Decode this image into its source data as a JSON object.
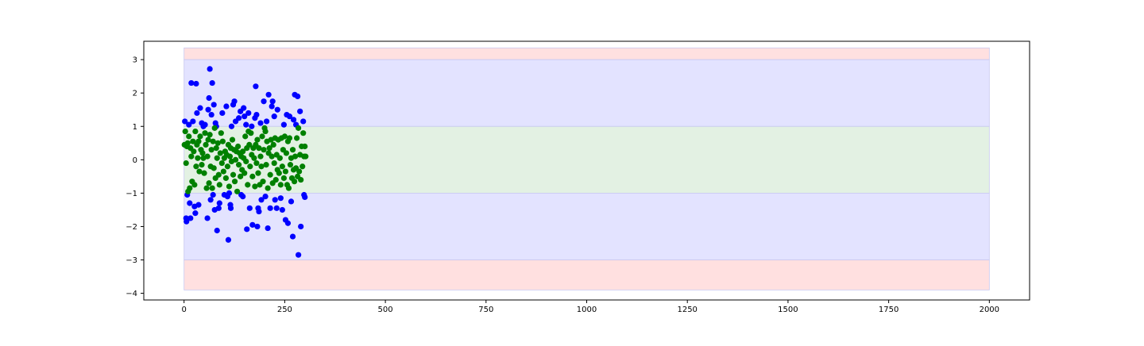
{
  "chart_data": {
    "type": "scatter",
    "title": "",
    "xlabel": "",
    "ylabel": "",
    "xlim": [
      -100,
      2100
    ],
    "ylim": [
      -4.2,
      3.55
    ],
    "x_ticks": [
      0,
      250,
      500,
      750,
      1000,
      1250,
      1500,
      1750,
      2000
    ],
    "x_tick_labels": [
      "0",
      "250",
      "500",
      "750",
      "1000",
      "1250",
      "1500",
      "1750",
      "2000"
    ],
    "y_ticks": [
      3,
      2,
      1,
      0,
      -1,
      -2,
      -3,
      -4
    ],
    "y_tick_labels": [
      "3",
      "2",
      "1",
      "0",
      "−1",
      "−2",
      "−3",
      "−4"
    ],
    "grid": false,
    "legend": "none",
    "bands": [
      {
        "name": "",
        "x_range": [
          0,
          2000
        ],
        "y_range": [
          3.0,
          3.35
        ],
        "color": "#ffe0e0"
      },
      {
        "name": "",
        "x_range": [
          0,
          2000
        ],
        "y_range": [
          1.0,
          3.0
        ],
        "color": "#e3e3ff"
      },
      {
        "name": "",
        "x_range": [
          0,
          2000
        ],
        "y_range": [
          -1.0,
          1.0
        ],
        "color": "#e3f1e3"
      },
      {
        "name": "",
        "x_range": [
          0,
          2000
        ],
        "y_range": [
          -3.0,
          -1.0
        ],
        "color": "#e3e3ff"
      },
      {
        "name": "",
        "x_range": [
          0,
          2000
        ],
        "y_range": [
          -3.9,
          -3.0
        ],
        "color": "#ffe0e0"
      }
    ],
    "band_edge_color": "#c8c8f0",
    "series": [
      {
        "color": "#0000ff",
        "points": [
          [
            2,
            1.15
          ],
          [
            5,
            -1.75
          ],
          [
            6,
            -1.85
          ],
          [
            8,
            -1.05
          ],
          [
            12,
            1.05
          ],
          [
            14,
            -1.3
          ],
          [
            16,
            -1.75
          ],
          [
            18,
            2.3
          ],
          [
            22,
            1.15
          ],
          [
            26,
            -1.4
          ],
          [
            28,
            -1.6
          ],
          [
            30,
            2.28
          ],
          [
            32,
            1.4
          ],
          [
            36,
            -1.35
          ],
          [
            40,
            1.55
          ],
          [
            44,
            1.1
          ],
          [
            48,
            1.0
          ],
          [
            52,
            1.05
          ],
          [
            58,
            -1.75
          ],
          [
            60,
            1.5
          ],
          [
            62,
            1.85
          ],
          [
            64,
            2.72
          ],
          [
            66,
            -1.2
          ],
          [
            68,
            1.35
          ],
          [
            70,
            2.3
          ],
          [
            72,
            -1.05
          ],
          [
            74,
            1.65
          ],
          [
            76,
            -1.5
          ],
          [
            78,
            1.1
          ],
          [
            80,
            1.0
          ],
          [
            82,
            -2.12
          ],
          [
            86,
            -1.45
          ],
          [
            88,
            -1.3
          ],
          [
            95,
            1.4
          ],
          [
            100,
            -1.05
          ],
          [
            105,
            1.6
          ],
          [
            108,
            -1.1
          ],
          [
            110,
            -2.4
          ],
          [
            112,
            -1.0
          ],
          [
            115,
            -1.35
          ],
          [
            116,
            -1.45
          ],
          [
            118,
            1.0
          ],
          [
            122,
            1.65
          ],
          [
            125,
            1.75
          ],
          [
            128,
            1.15
          ],
          [
            136,
            1.25
          ],
          [
            140,
            1.45
          ],
          [
            142,
            -1.05
          ],
          [
            146,
            -1.1
          ],
          [
            148,
            1.55
          ],
          [
            150,
            1.3
          ],
          [
            154,
            1.05
          ],
          [
            156,
            -2.08
          ],
          [
            160,
            1.4
          ],
          [
            163,
            -1.45
          ],
          [
            168,
            1.0
          ],
          [
            170,
            -1.95
          ],
          [
            176,
            1.25
          ],
          [
            178,
            2.2
          ],
          [
            180,
            1.35
          ],
          [
            182,
            -2.0
          ],
          [
            184,
            -1.45
          ],
          [
            186,
            -1.55
          ],
          [
            190,
            1.1
          ],
          [
            192,
            -1.2
          ],
          [
            198,
            1.75
          ],
          [
            202,
            -1.1
          ],
          [
            205,
            1.15
          ],
          [
            208,
            -2.05
          ],
          [
            210,
            1.95
          ],
          [
            214,
            -1.45
          ],
          [
            218,
            1.6
          ],
          [
            220,
            1.75
          ],
          [
            224,
            1.3
          ],
          [
            226,
            -1.2
          ],
          [
            230,
            -1.45
          ],
          [
            232,
            1.5
          ],
          [
            240,
            -1.15
          ],
          [
            244,
            -1.5
          ],
          [
            248,
            1.05
          ],
          [
            252,
            -1.8
          ],
          [
            255,
            1.35
          ],
          [
            258,
            -1.9
          ],
          [
            262,
            1.3
          ],
          [
            266,
            -1.25
          ],
          [
            270,
            -2.3
          ],
          [
            272,
            1.2
          ],
          [
            275,
            1.95
          ],
          [
            278,
            1.05
          ],
          [
            282,
            1.9
          ],
          [
            284,
            -2.85
          ],
          [
            288,
            1.45
          ],
          [
            290,
            -2.0
          ],
          [
            296,
            1.15
          ],
          [
            298,
            -1.05
          ],
          [
            300,
            -1.12
          ]
        ]
      },
      {
        "color": "#008000",
        "points": [
          [
            1,
            0.45
          ],
          [
            3,
            0.85
          ],
          [
            5,
            -0.1
          ],
          [
            7,
            0.4
          ],
          [
            9,
            0.5
          ],
          [
            10,
            -0.95
          ],
          [
            12,
            0.7
          ],
          [
            14,
            -0.85
          ],
          [
            16,
            0.35
          ],
          [
            18,
            0.1
          ],
          [
            20,
            -0.65
          ],
          [
            22,
            0.55
          ],
          [
            24,
            0.25
          ],
          [
            26,
            -0.75
          ],
          [
            28,
            0.85
          ],
          [
            30,
            -0.2
          ],
          [
            32,
            0.45
          ],
          [
            34,
            0.05
          ],
          [
            36,
            0.55
          ],
          [
            38,
            -0.35
          ],
          [
            40,
            0.7
          ],
          [
            42,
            0.3
          ],
          [
            44,
            -0.15
          ],
          [
            46,
            0.2
          ],
          [
            48,
            0.05
          ],
          [
            50,
            -0.4
          ],
          [
            52,
            0.8
          ],
          [
            54,
            0.45
          ],
          [
            56,
            -0.85
          ],
          [
            58,
            0.1
          ],
          [
            60,
            0.6
          ],
          [
            62,
            -0.7
          ],
          [
            64,
            0.75
          ],
          [
            66,
            -0.2
          ],
          [
            68,
            0.3
          ],
          [
            70,
            -0.85
          ],
          [
            72,
            0.55
          ],
          [
            74,
            -0.25
          ],
          [
            76,
            0.95
          ],
          [
            78,
            -0.55
          ],
          [
            80,
            0.35
          ],
          [
            82,
            0.05
          ],
          [
            84,
            0.5
          ],
          [
            86,
            -0.45
          ],
          [
            88,
            -0.75
          ],
          [
            90,
            0.2
          ],
          [
            92,
            0.8
          ],
          [
            94,
            -0.1
          ],
          [
            96,
            0.55
          ],
          [
            98,
            -0.35
          ],
          [
            100,
            0.05
          ],
          [
            102,
            0.25
          ],
          [
            104,
            -0.55
          ],
          [
            106,
            0.15
          ],
          [
            108,
            -0.2
          ],
          [
            110,
            0.45
          ],
          [
            112,
            -0.8
          ],
          [
            114,
            0.1
          ],
          [
            116,
            0.35
          ],
          [
            118,
            -0.05
          ],
          [
            120,
            0.6
          ],
          [
            122,
            -0.45
          ],
          [
            124,
            0.3
          ],
          [
            126,
            -0.65
          ],
          [
            128,
            0.0
          ],
          [
            130,
            0.25
          ],
          [
            132,
            -0.95
          ],
          [
            134,
            0.4
          ],
          [
            136,
            -0.15
          ],
          [
            138,
            0.2
          ],
          [
            140,
            -0.5
          ],
          [
            142,
            0.1
          ],
          [
            144,
            -0.3
          ],
          [
            146,
            0.25
          ],
          [
            148,
            0.05
          ],
          [
            150,
            -0.4
          ],
          [
            152,
            0.7
          ],
          [
            154,
            -0.05
          ],
          [
            156,
            0.35
          ],
          [
            158,
            -0.75
          ],
          [
            160,
            0.85
          ],
          [
            162,
            0.45
          ],
          [
            164,
            -0.2
          ],
          [
            166,
            0.8
          ],
          [
            168,
            0.15
          ],
          [
            170,
            -0.5
          ],
          [
            172,
            0.35
          ],
          [
            174,
            0.05
          ],
          [
            176,
            -0.8
          ],
          [
            178,
            0.45
          ],
          [
            180,
            -0.1
          ],
          [
            182,
            0.6
          ],
          [
            184,
            -0.4
          ],
          [
            186,
            0.35
          ],
          [
            188,
            -0.75
          ],
          [
            190,
            0.1
          ],
          [
            192,
            -0.2
          ],
          [
            194,
            0.7
          ],
          [
            196,
            -0.65
          ],
          [
            198,
            0.3
          ],
          [
            200,
            0.95
          ],
          [
            202,
            0.85
          ],
          [
            204,
            -0.15
          ],
          [
            206,
            0.55
          ],
          [
            208,
            -0.85
          ],
          [
            210,
            0.2
          ],
          [
            212,
            0.35
          ],
          [
            214,
            -0.45
          ],
          [
            216,
            0.6
          ],
          [
            218,
            0.1
          ],
          [
            220,
            -0.7
          ],
          [
            222,
            0.45
          ],
          [
            224,
            -0.1
          ],
          [
            226,
            0.65
          ],
          [
            228,
            -0.6
          ],
          [
            230,
            0.15
          ],
          [
            232,
            -0.3
          ],
          [
            234,
            0.6
          ],
          [
            236,
            -0.4
          ],
          [
            238,
            0.05
          ],
          [
            240,
            -0.75
          ],
          [
            242,
            0.65
          ],
          [
            244,
            -0.2
          ],
          [
            246,
            0.3
          ],
          [
            248,
            -0.55
          ],
          [
            250,
            0.7
          ],
          [
            252,
            -0.35
          ],
          [
            254,
            0.2
          ],
          [
            256,
            -0.75
          ],
          [
            258,
            0.55
          ],
          [
            260,
            -0.85
          ],
          [
            262,
            0.65
          ],
          [
            264,
            -0.15
          ],
          [
            266,
            0.05
          ],
          [
            268,
            -0.55
          ],
          [
            270,
            0.3
          ],
          [
            272,
            -0.3
          ],
          [
            274,
            -0.65
          ],
          [
            276,
            0.1
          ],
          [
            278,
            -0.25
          ],
          [
            280,
            0.65
          ],
          [
            282,
            -0.5
          ],
          [
            284,
            0.95
          ],
          [
            286,
            -0.35
          ],
          [
            288,
            0.15
          ],
          [
            290,
            -0.6
          ],
          [
            292,
            0.4
          ],
          [
            294,
            -0.2
          ],
          [
            296,
            0.8
          ],
          [
            298,
            0.1
          ],
          [
            300,
            0.4
          ],
          [
            302,
            0.1
          ]
        ]
      }
    ]
  }
}
